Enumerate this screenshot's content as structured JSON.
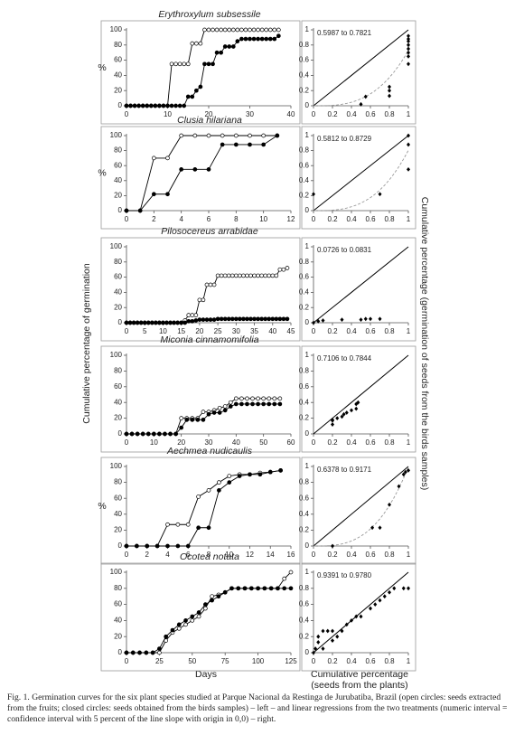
{
  "figure": {
    "y_label": "Cumulative percentage of germination",
    "x_label": "Days",
    "y2_label": "Cumulative percentage (germination of seeds from the birds samples)",
    "x2_label": [
      "Cumulative percentage",
      "(seeds from the plants)"
    ],
    "caption": "Fig. 1. Germination curves for the six plant species studied at Parque Nacional da Restinga de Jurubatiba, Brazil (open circles: seeds extracted from the fruits; closed circles: seeds obtained from the birds samples) – left – and linear regressions from the two treatments (numeric interval = confidence interval with 5 percent of the line slope with origin in 0,0) – right."
  },
  "chart_data": [
    {
      "type": "line",
      "title": "Erythroxylum subsessile",
      "y_label": "%",
      "xlim": [
        0,
        40
      ],
      "xticks": [
        0,
        10,
        20,
        30,
        40
      ],
      "ylim": [
        0,
        100
      ],
      "yticks": [
        0,
        20,
        40,
        60,
        80,
        100
      ],
      "x": [
        0,
        1,
        2,
        3,
        4,
        5,
        6,
        7,
        8,
        9,
        10,
        11,
        12,
        13,
        14,
        15,
        16,
        17,
        18,
        19,
        20,
        21,
        22,
        23,
        24,
        25,
        26,
        27,
        28,
        29,
        30,
        31,
        32,
        33,
        34,
        35,
        36,
        37
      ],
      "series": [
        {
          "marker": "open",
          "color": "#000000",
          "values": [
            0,
            0,
            0,
            0,
            0,
            0,
            0,
            0,
            0,
            0,
            0,
            55,
            55,
            55,
            55,
            55,
            82,
            82,
            82,
            100,
            100,
            100,
            100,
            100,
            100,
            100,
            100,
            100,
            100,
            100,
            100,
            100,
            100,
            100,
            100,
            100,
            100,
            100
          ]
        },
        {
          "marker": "closed",
          "color": "#000000",
          "values": [
            0,
            0,
            0,
            0,
            0,
            0,
            0,
            0,
            0,
            0,
            0,
            0,
            0,
            0,
            0,
            12,
            12,
            20,
            25,
            55,
            55,
            55,
            70,
            70,
            78,
            78,
            78,
            85,
            88,
            88,
            88,
            88,
            88,
            88,
            88,
            88,
            88,
            92
          ]
        }
      ]
    },
    {
      "type": "scatter",
      "annotation": "0.5987 to 0.7821",
      "regression_curve": true,
      "xlim": [
        0,
        1
      ],
      "xticks": [
        0,
        0.2,
        0.4,
        0.6,
        0.8,
        1
      ],
      "ylim": [
        0,
        1
      ],
      "yticks": [
        0,
        0.2,
        0.4,
        0.6,
        0.8,
        1
      ],
      "color": "#000000",
      "x": [
        0.5,
        0.55,
        0.8,
        0.8,
        0.8,
        1,
        1,
        1,
        1,
        1,
        1,
        1,
        1
      ],
      "values": [
        0.02,
        0.12,
        0.2,
        0.25,
        0.13,
        0.55,
        0.65,
        0.7,
        0.75,
        0.8,
        0.85,
        0.88,
        0.92
      ]
    },
    {
      "type": "line",
      "title": "Clusia hilariana",
      "y_label": "%",
      "xlim": [
        0,
        12
      ],
      "xticks": [
        0,
        2,
        4,
        6,
        8,
        10,
        12
      ],
      "ylim": [
        0,
        100
      ],
      "yticks": [
        0,
        20,
        40,
        60,
        80,
        100
      ],
      "x": [
        0,
        1,
        2,
        3,
        4,
        5,
        6,
        7,
        8,
        9,
        10,
        11
      ],
      "series": [
        {
          "marker": "open",
          "color": "#000000",
          "values": [
            0,
            0,
            70,
            70,
            100,
            100,
            100,
            100,
            100,
            100,
            100,
            100
          ]
        },
        {
          "marker": "closed",
          "color": "#000000",
          "values": [
            0,
            0,
            22,
            22,
            55,
            55,
            55,
            88,
            88,
            88,
            88,
            100
          ]
        }
      ]
    },
    {
      "type": "scatter",
      "annotation": "0.5812 to 0.8729",
      "regression_curve": true,
      "xlim": [
        0,
        1
      ],
      "xticks": [
        0,
        0.2,
        0.4,
        0.6,
        0.8,
        1
      ],
      "ylim": [
        0,
        1
      ],
      "yticks": [
        0,
        0.2,
        0.4,
        0.6,
        0.8,
        1
      ],
      "color": "#000000",
      "x": [
        0,
        0.7,
        1,
        1,
        1
      ],
      "values": [
        0.22,
        0.22,
        0.55,
        0.88,
        1
      ]
    },
    {
      "type": "line",
      "title": "Pilosocereus arrabidae",
      "xlim": [
        0,
        45
      ],
      "xticks": [
        0,
        5,
        10,
        15,
        20,
        25,
        30,
        35,
        40,
        45
      ],
      "ylim": [
        0,
        100
      ],
      "yticks": [
        0,
        20,
        40,
        60,
        80,
        100
      ],
      "x": [
        0,
        1,
        2,
        3,
        4,
        5,
        6,
        7,
        8,
        9,
        10,
        11,
        12,
        13,
        14,
        15,
        16,
        17,
        18,
        19,
        20,
        21,
        22,
        23,
        24,
        25,
        26,
        27,
        28,
        29,
        30,
        31,
        32,
        33,
        34,
        35,
        36,
        37,
        38,
        39,
        40,
        41,
        42,
        43,
        44
      ],
      "series": [
        {
          "marker": "open",
          "color": "#000000",
          "values": [
            0,
            0,
            0,
            0,
            0,
            0,
            0,
            0,
            0,
            0,
            0,
            0,
            0,
            0,
            0,
            0,
            3,
            10,
            10,
            10,
            30,
            30,
            50,
            50,
            50,
            62,
            62,
            62,
            62,
            62,
            62,
            62,
            62,
            62,
            62,
            62,
            62,
            62,
            62,
            62,
            62,
            62,
            70,
            70,
            72
          ]
        },
        {
          "marker": "closed",
          "color": "#000000",
          "values": [
            0,
            0,
            0,
            0,
            0,
            0,
            0,
            0,
            0,
            0,
            0,
            0,
            0,
            0,
            0,
            0,
            0,
            2,
            2,
            3,
            4,
            4,
            4,
            4,
            4,
            5,
            5,
            5,
            5,
            5,
            5,
            5,
            5,
            5,
            5,
            5,
            5,
            5,
            5,
            5,
            5,
            5,
            5,
            5,
            5
          ]
        }
      ]
    },
    {
      "type": "scatter",
      "annotation": "0.0726 to 0.0831",
      "xlim": [
        0,
        1
      ],
      "xticks": [
        0,
        0.2,
        0.4,
        0.6,
        0.8,
        1
      ],
      "ylim": [
        0,
        1
      ],
      "yticks": [
        0,
        0.2,
        0.4,
        0.6,
        0.8,
        1
      ],
      "color": "#000000",
      "x": [
        0,
        0.05,
        0.1,
        0.3,
        0.5,
        0.55,
        0.6,
        0.7
      ],
      "values": [
        0,
        0.02,
        0.03,
        0.04,
        0.04,
        0.05,
        0.05,
        0.05
      ]
    },
    {
      "type": "line",
      "title": "Miconia cinnamomifolia",
      "xlim": [
        0,
        60
      ],
      "xticks": [
        0,
        10,
        20,
        30,
        40,
        50,
        60
      ],
      "ylim": [
        0,
        100
      ],
      "yticks": [
        0,
        20,
        40,
        60,
        80,
        100
      ],
      "x": [
        0,
        2,
        4,
        6,
        8,
        10,
        12,
        14,
        16,
        18,
        20,
        22,
        24,
        26,
        28,
        30,
        32,
        34,
        36,
        38,
        40,
        42,
        44,
        46,
        48,
        50,
        52,
        54,
        56
      ],
      "series": [
        {
          "marker": "open",
          "color": "#000000",
          "values": [
            0,
            0,
            0,
            0,
            0,
            0,
            0,
            0,
            0,
            0,
            20,
            20,
            20,
            20,
            28,
            28,
            30,
            33,
            35,
            40,
            45,
            45,
            45,
            45,
            45,
            45,
            45,
            45,
            45
          ]
        },
        {
          "marker": "closed",
          "color": "#000000",
          "values": [
            0,
            0,
            0,
            0,
            0,
            0,
            0,
            0,
            0,
            0,
            8,
            18,
            18,
            18,
            18,
            25,
            27,
            27,
            30,
            35,
            38,
            38,
            38,
            38,
            38,
            38,
            38,
            38,
            38
          ]
        }
      ]
    },
    {
      "type": "scatter",
      "annotation": "0.7106 to 0.7844",
      "xlim": [
        0,
        1
      ],
      "xticks": [
        0,
        0.2,
        0.4,
        0.6,
        0.8,
        1
      ],
      "ylim": [
        0,
        1
      ],
      "yticks": [
        0,
        0.2,
        0.4,
        0.6,
        0.8,
        1
      ],
      "color": "#000000",
      "x": [
        0.2,
        0.2,
        0.2,
        0.25,
        0.3,
        0.32,
        0.35,
        0.4,
        0.45,
        0.45,
        0.47
      ],
      "values": [
        0.12,
        0.17,
        0.18,
        0.2,
        0.22,
        0.25,
        0.27,
        0.3,
        0.32,
        0.38,
        0.4
      ]
    },
    {
      "type": "line",
      "title": "Aechmea nudicaulis",
      "y_label": "%",
      "xlim": [
        0,
        16
      ],
      "xticks": [
        0,
        2,
        4,
        6,
        8,
        10,
        12,
        14,
        16
      ],
      "ylim": [
        0,
        100
      ],
      "yticks": [
        0,
        20,
        40,
        60,
        80,
        100
      ],
      "x": [
        0,
        1,
        2,
        3,
        4,
        5,
        6,
        7,
        8,
        9,
        10,
        11,
        12,
        13,
        14,
        15
      ],
      "series": [
        {
          "marker": "open",
          "color": "#000000",
          "values": [
            0,
            0,
            0,
            0,
            27,
            27,
            27,
            62,
            70,
            80,
            88,
            90,
            90,
            92,
            93,
            95
          ]
        },
        {
          "marker": "closed",
          "color": "#000000",
          "values": [
            0,
            0,
            0,
            0,
            0,
            0,
            0,
            23,
            23,
            70,
            80,
            88,
            90,
            90,
            93,
            95
          ]
        }
      ]
    },
    {
      "type": "scatter",
      "annotation": "0.6378 to 0.9171",
      "regression_curve": true,
      "xlim": [
        0,
        1
      ],
      "xticks": [
        0,
        0.2,
        0.4,
        0.6,
        0.8,
        1
      ],
      "ylim": [
        0,
        1
      ],
      "yticks": [
        0,
        0.2,
        0.4,
        0.6,
        0.8,
        1
      ],
      "color": "#000000",
      "x": [
        0.2,
        0.62,
        0.7,
        0.8,
        0.9,
        0.95,
        0.97,
        1
      ],
      "values": [
        0,
        0.23,
        0.23,
        0.52,
        0.75,
        0.9,
        0.93,
        0.95
      ]
    },
    {
      "type": "line",
      "title": "Ocotea notata",
      "xlim": [
        0,
        125
      ],
      "xticks": [
        0,
        25,
        50,
        75,
        100,
        125
      ],
      "ylim": [
        0,
        100
      ],
      "yticks": [
        0,
        20,
        40,
        60,
        80,
        100
      ],
      "x": [
        0,
        5,
        10,
        15,
        20,
        25,
        30,
        35,
        40,
        45,
        50,
        55,
        60,
        65,
        70,
        75,
        80,
        85,
        90,
        95,
        100,
        105,
        110,
        115,
        120,
        125
      ],
      "series": [
        {
          "marker": "open",
          "color": "#000000",
          "values": [
            0,
            0,
            0,
            0,
            0,
            0,
            15,
            25,
            30,
            35,
            40,
            45,
            55,
            70,
            72,
            75,
            80,
            80,
            80,
            80,
            80,
            80,
            80,
            80,
            92,
            100
          ]
        },
        {
          "marker": "closed",
          "color": "#000000",
          "values": [
            0,
            0,
            0,
            0,
            0,
            5,
            20,
            28,
            35,
            40,
            45,
            50,
            60,
            65,
            70,
            75,
            80,
            80,
            80,
            80,
            80,
            80,
            80,
            80,
            80,
            80
          ]
        }
      ]
    },
    {
      "type": "scatter",
      "annotation": "0.9391 to 0.9780",
      "xlim": [
        0,
        1
      ],
      "xticks": [
        0,
        0.2,
        0.4,
        0.6,
        0.8,
        1
      ],
      "ylim": [
        0,
        1
      ],
      "yticks": [
        0,
        0.2,
        0.4,
        0.6,
        0.8,
        1
      ],
      "color": "#000000",
      "x": [
        0,
        0.02,
        0.05,
        0.05,
        0.1,
        0.15,
        0.2,
        0.3,
        0.35,
        0.4,
        0.45,
        0.5,
        0.6,
        0.65,
        0.7,
        0.75,
        0.8,
        0.85,
        0.95,
        1,
        0.1,
        0.2,
        0.25
      ],
      "values": [
        0,
        0.05,
        0.13,
        0.2,
        0.27,
        0.27,
        0.27,
        0.27,
        0.35,
        0.4,
        0.45,
        0.45,
        0.55,
        0.6,
        0.65,
        0.7,
        0.75,
        0.8,
        0.8,
        0.8,
        0.05,
        0.15,
        0.2
      ]
    }
  ]
}
